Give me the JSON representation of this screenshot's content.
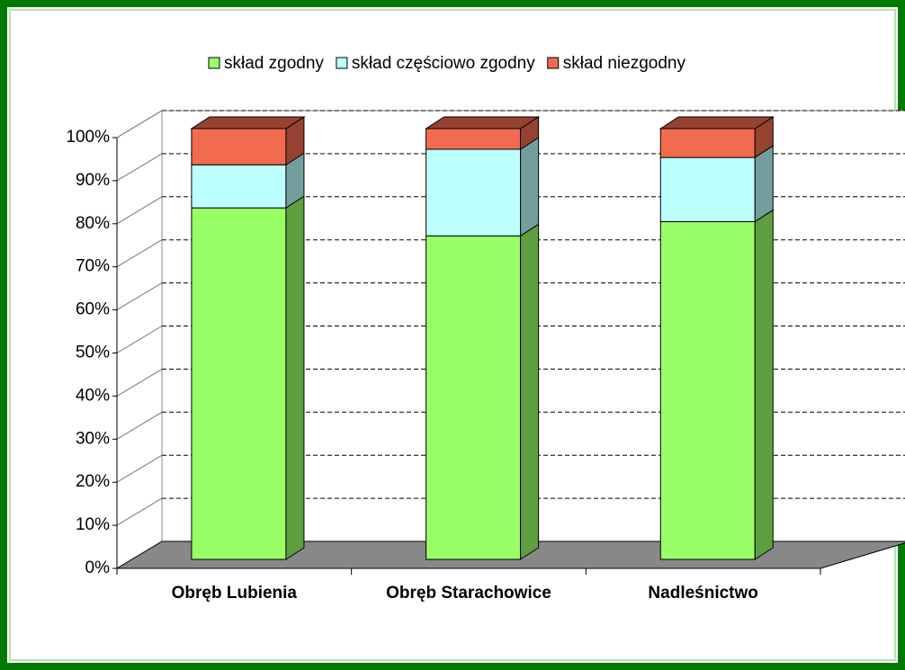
{
  "chart_data": {
    "type": "bar3d_stacked",
    "categories": [
      "Obręb Lubienia",
      "Obręb Starachowice",
      "Nadleśnictwo"
    ],
    "series": [
      {
        "name": "skład zgodny",
        "color": "#99ff66",
        "values": [
          81.6,
          75.1,
          78.4
        ]
      },
      {
        "name": "skład częściowo zgodny",
        "color": "#bbffff",
        "values": [
          10,
          20.1,
          14.9
        ]
      },
      {
        "name": "skład niezgodny",
        "color": "#f26b4f",
        "values": [
          8.4,
          4.8,
          6.7
        ]
      }
    ],
    "ylim": [
      0,
      100
    ],
    "yticks": [
      {
        "value": 0,
        "label": "0%"
      },
      {
        "value": 10,
        "label": "10%"
      },
      {
        "value": 20,
        "label": "20%"
      },
      {
        "value": 30,
        "label": "30%"
      },
      {
        "value": 40,
        "label": "40%"
      },
      {
        "value": 50,
        "label": "50%"
      },
      {
        "value": 60,
        "label": "60%"
      },
      {
        "value": 70,
        "label": "70%"
      },
      {
        "value": 80,
        "label": "80%"
      },
      {
        "value": 90,
        "label": "90%"
      },
      {
        "value": 100,
        "label": "100%"
      }
    ],
    "grid": true,
    "legend": "top"
  }
}
